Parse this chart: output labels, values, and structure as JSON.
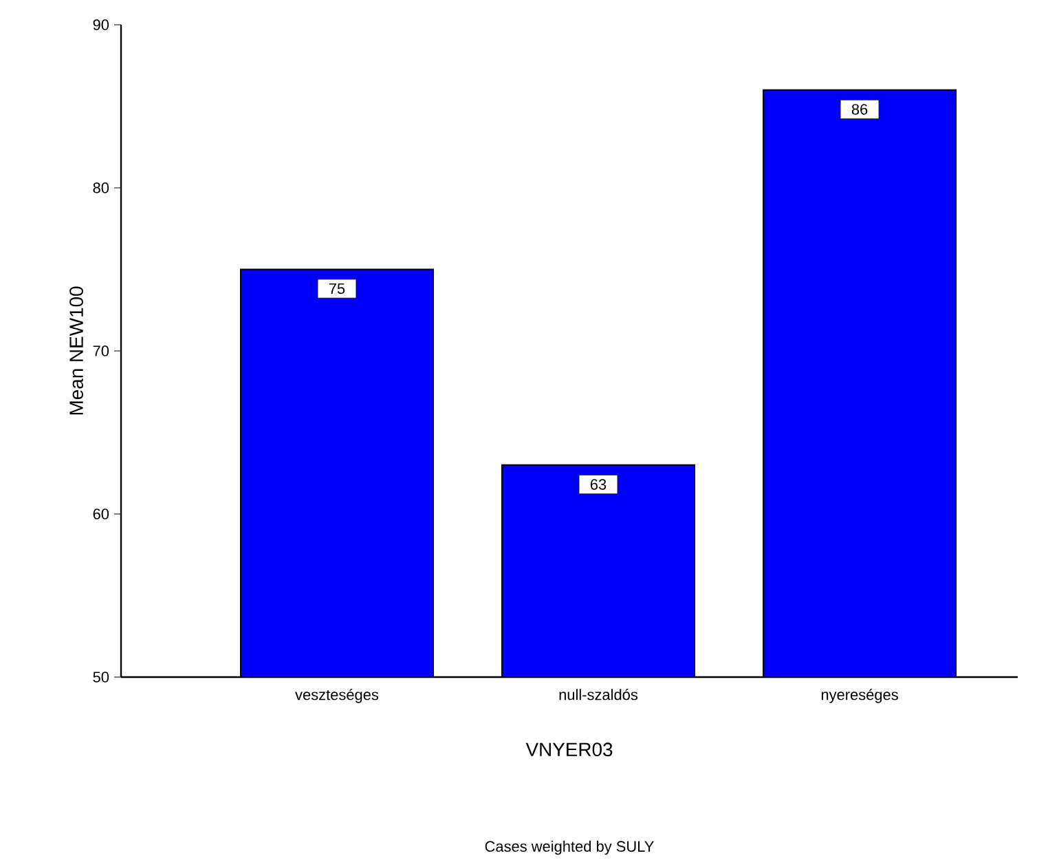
{
  "chart_data": {
    "type": "bar",
    "xlabel": "VNYER03",
    "ylabel": "Mean NEW100",
    "annotations": [
      "Cases weighted by SULY"
    ],
    "categories": [
      "veszteséges",
      "null-szaldós",
      "nyereséges"
    ],
    "values": [
      75,
      63,
      86
    ],
    "color": "#0000ff",
    "ylim": [
      50,
      90
    ],
    "yticks": [
      50,
      60,
      70,
      80,
      90
    ],
    "grid": false,
    "data_labels": true
  }
}
